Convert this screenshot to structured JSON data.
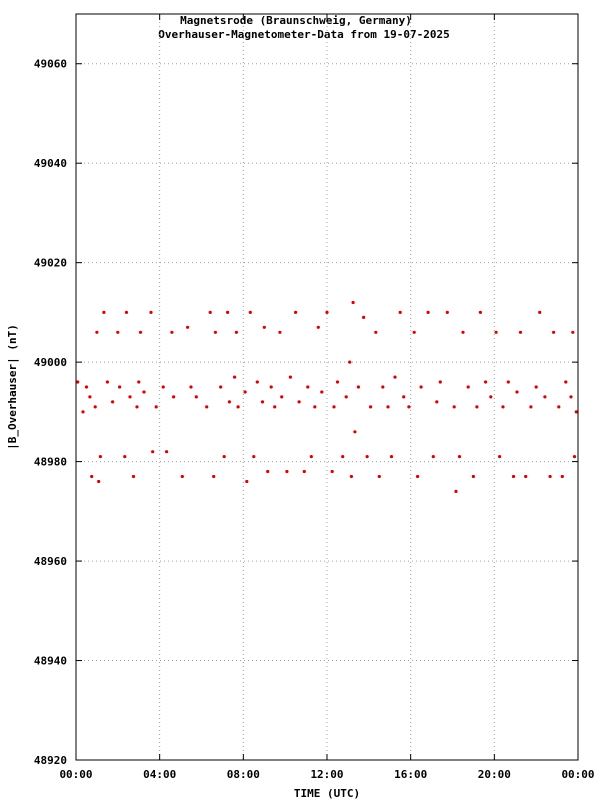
{
  "chart_data": {
    "type": "scatter",
    "title": "Magnetsrode (Braunschweig, Germany)",
    "subtitle": "Overhauser-Magnetometer-Data from 19-07-2025",
    "xlabel": "TIME (UTC)",
    "ylabel": "|B_Overhauser| (nT)",
    "xlim": [
      "00:00",
      "00:00"
    ],
    "ylim": [
      48920,
      49070
    ],
    "x_ticks": [
      "00:00",
      "04:00",
      "08:00",
      "12:00",
      "16:00",
      "20:00",
      "00:00"
    ],
    "y_ticks": [
      "48920",
      "48940",
      "48960",
      "48980",
      "49000",
      "49020",
      "49040",
      "49060"
    ],
    "grid": true,
    "color": "#dd0000",
    "series": [
      {
        "points": [
          [
            "00:05",
            48996
          ],
          [
            "00:20",
            48990
          ],
          [
            "00:30",
            48995
          ],
          [
            "00:40",
            48993
          ],
          [
            "00:45",
            48977
          ],
          [
            "00:55",
            48991
          ],
          [
            "01:00",
            49006
          ],
          [
            "01:05",
            48976
          ],
          [
            "01:10",
            48981
          ],
          [
            "01:20",
            49010
          ],
          [
            "01:30",
            48996
          ],
          [
            "01:45",
            48992
          ],
          [
            "02:00",
            49006
          ],
          [
            "02:05",
            48995
          ],
          [
            "02:20",
            48981
          ],
          [
            "02:25",
            49010
          ],
          [
            "02:35",
            48993
          ],
          [
            "02:45",
            48977
          ],
          [
            "02:55",
            48991
          ],
          [
            "03:00",
            48996
          ],
          [
            "03:05",
            49006
          ],
          [
            "03:15",
            48994
          ],
          [
            "03:35",
            49010
          ],
          [
            "03:40",
            48982
          ],
          [
            "03:50",
            48991
          ],
          [
            "04:10",
            48995
          ],
          [
            "04:20",
            48982
          ],
          [
            "04:35",
            49006
          ],
          [
            "04:40",
            48993
          ],
          [
            "05:05",
            48977
          ],
          [
            "05:20",
            49007
          ],
          [
            "05:30",
            48995
          ],
          [
            "05:45",
            48993
          ],
          [
            "06:15",
            48991
          ],
          [
            "06:25",
            49010
          ],
          [
            "06:35",
            48977
          ],
          [
            "06:40",
            49006
          ],
          [
            "06:55",
            48995
          ],
          [
            "07:05",
            48981
          ],
          [
            "07:15",
            49010
          ],
          [
            "07:20",
            48992
          ],
          [
            "07:35",
            48997
          ],
          [
            "07:40",
            49006
          ],
          [
            "07:45",
            48991
          ],
          [
            "08:05",
            48994
          ],
          [
            "08:10",
            48976
          ],
          [
            "08:20",
            49010
          ],
          [
            "08:30",
            48981
          ],
          [
            "08:40",
            48996
          ],
          [
            "08:55",
            48992
          ],
          [
            "09:00",
            49007
          ],
          [
            "09:10",
            48978
          ],
          [
            "09:20",
            48995
          ],
          [
            "09:30",
            48991
          ],
          [
            "09:45",
            49006
          ],
          [
            "09:50",
            48993
          ],
          [
            "10:05",
            48978
          ],
          [
            "10:15",
            48997
          ],
          [
            "10:30",
            49010
          ],
          [
            "10:40",
            48992
          ],
          [
            "10:55",
            48978
          ],
          [
            "11:05",
            48995
          ],
          [
            "11:15",
            48981
          ],
          [
            "11:25",
            48991
          ],
          [
            "11:35",
            49007
          ],
          [
            "11:45",
            48994
          ],
          [
            "12:00",
            49010
          ],
          [
            "12:15",
            48978
          ],
          [
            "12:20",
            48991
          ],
          [
            "12:30",
            48996
          ],
          [
            "12:45",
            48981
          ],
          [
            "12:55",
            48993
          ],
          [
            "13:05",
            49000
          ],
          [
            "13:10",
            48977
          ],
          [
            "13:15",
            49012
          ],
          [
            "13:20",
            48986
          ],
          [
            "13:30",
            48995
          ],
          [
            "13:45",
            49009
          ],
          [
            "13:55",
            48981
          ],
          [
            "14:05",
            48991
          ],
          [
            "14:20",
            49006
          ],
          [
            "14:30",
            48977
          ],
          [
            "14:40",
            48995
          ],
          [
            "14:55",
            48991
          ],
          [
            "15:05",
            48981
          ],
          [
            "15:15",
            48997
          ],
          [
            "15:30",
            49010
          ],
          [
            "15:40",
            48993
          ],
          [
            "15:55",
            48991
          ],
          [
            "16:10",
            49006
          ],
          [
            "16:20",
            48977
          ],
          [
            "16:30",
            48995
          ],
          [
            "16:50",
            49010
          ],
          [
            "17:05",
            48981
          ],
          [
            "17:15",
            48992
          ],
          [
            "17:25",
            48996
          ],
          [
            "17:45",
            49010
          ],
          [
            "18:05",
            48991
          ],
          [
            "18:10",
            48974
          ],
          [
            "18:20",
            48981
          ],
          [
            "18:30",
            49006
          ],
          [
            "18:45",
            48995
          ],
          [
            "19:00",
            48977
          ],
          [
            "19:10",
            48991
          ],
          [
            "19:20",
            49010
          ],
          [
            "19:35",
            48996
          ],
          [
            "19:50",
            48993
          ],
          [
            "20:05",
            49006
          ],
          [
            "20:15",
            48981
          ],
          [
            "20:25",
            48991
          ],
          [
            "20:40",
            48996
          ],
          [
            "20:55",
            48977
          ],
          [
            "21:05",
            48994
          ],
          [
            "21:15",
            49006
          ],
          [
            "21:30",
            48977
          ],
          [
            "21:45",
            48991
          ],
          [
            "22:00",
            48995
          ],
          [
            "22:10",
            49010
          ],
          [
            "22:25",
            48993
          ],
          [
            "22:40",
            48977
          ],
          [
            "22:50",
            49006
          ],
          [
            "23:05",
            48991
          ],
          [
            "23:15",
            48977
          ],
          [
            "23:25",
            48996
          ],
          [
            "23:40",
            48993
          ],
          [
            "23:45",
            49006
          ],
          [
            "23:50",
            48981
          ],
          [
            "23:55",
            48990
          ]
        ]
      }
    ]
  }
}
